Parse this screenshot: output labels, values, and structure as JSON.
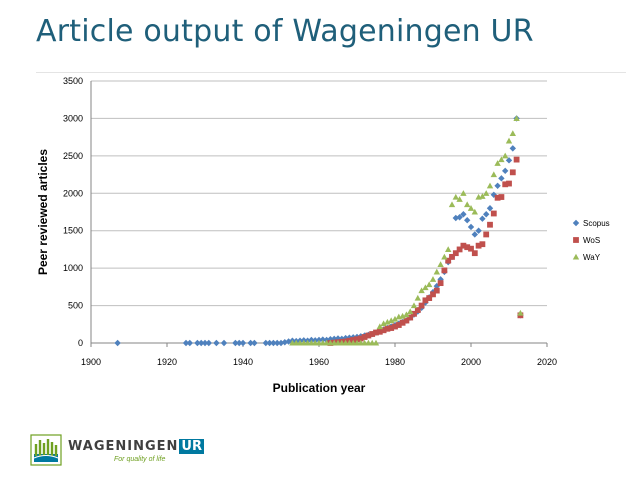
{
  "slide": {
    "title": "Article output of Wageningen UR"
  },
  "logo": {
    "name": "WAGENINGEN",
    "suffix": "UR",
    "tagline": "For quality of life"
  },
  "chart_data": {
    "type": "scatter",
    "title": "",
    "xlabel": "Publication year",
    "ylabel": "Peer reviewed articles",
    "xlim": [
      1900,
      2020
    ],
    "ylim": [
      0,
      3500
    ],
    "xticks": [
      1900,
      1920,
      1940,
      1960,
      1980,
      2000,
      2020
    ],
    "yticks": [
      0,
      500,
      1000,
      1500,
      2000,
      2500,
      3000,
      3500
    ],
    "grid": "horizontal",
    "legend_position": "right",
    "series": [
      {
        "name": "Scopus",
        "color": "#4f81bd",
        "marker": "diamond",
        "points": [
          [
            1907,
            0
          ],
          [
            1925,
            0
          ],
          [
            1926,
            0
          ],
          [
            1928,
            0
          ],
          [
            1929,
            0
          ],
          [
            1930,
            0
          ],
          [
            1931,
            0
          ],
          [
            1933,
            0
          ],
          [
            1935,
            0
          ],
          [
            1938,
            0
          ],
          [
            1939,
            0
          ],
          [
            1940,
            0
          ],
          [
            1942,
            0
          ],
          [
            1943,
            0
          ],
          [
            1946,
            0
          ],
          [
            1947,
            0
          ],
          [
            1948,
            0
          ],
          [
            1949,
            0
          ],
          [
            1950,
            0
          ],
          [
            1951,
            10
          ],
          [
            1952,
            20
          ],
          [
            1953,
            30
          ],
          [
            1954,
            25
          ],
          [
            1955,
            30
          ],
          [
            1956,
            35
          ],
          [
            1957,
            30
          ],
          [
            1958,
            40
          ],
          [
            1959,
            35
          ],
          [
            1960,
            40
          ],
          [
            1961,
            45
          ],
          [
            1962,
            40
          ],
          [
            1963,
            50
          ],
          [
            1964,
            55
          ],
          [
            1965,
            60
          ],
          [
            1966,
            55
          ],
          [
            1967,
            65
          ],
          [
            1968,
            70
          ],
          [
            1969,
            75
          ],
          [
            1970,
            80
          ],
          [
            1971,
            90
          ],
          [
            1972,
            100
          ],
          [
            1973,
            110
          ],
          [
            1974,
            120
          ],
          [
            1975,
            140
          ],
          [
            1976,
            160
          ],
          [
            1977,
            180
          ],
          [
            1978,
            200
          ],
          [
            1979,
            220
          ],
          [
            1980,
            240
          ],
          [
            1981,
            260
          ],
          [
            1982,
            280
          ],
          [
            1983,
            300
          ],
          [
            1984,
            340
          ],
          [
            1985,
            380
          ],
          [
            1986,
            420
          ],
          [
            1987,
            470
          ],
          [
            1988,
            540
          ],
          [
            1989,
            610
          ],
          [
            1990,
            680
          ],
          [
            1991,
            760
          ],
          [
            1992,
            850
          ],
          [
            1993,
            950
          ],
          [
            1994,
            1080
          ],
          [
            1995,
            1150
          ],
          [
            1996,
            1670
          ],
          [
            1997,
            1680
          ],
          [
            1998,
            1720
          ],
          [
            1999,
            1640
          ],
          [
            2000,
            1550
          ],
          [
            2001,
            1450
          ],
          [
            2002,
            1500
          ],
          [
            2003,
            1660
          ],
          [
            2004,
            1720
          ],
          [
            2005,
            1800
          ],
          [
            2006,
            1980
          ],
          [
            2007,
            2100
          ],
          [
            2008,
            2200
          ],
          [
            2009,
            2300
          ],
          [
            2010,
            2440
          ],
          [
            2011,
            2600
          ],
          [
            2012,
            3000
          ],
          [
            2013,
            370
          ]
        ]
      },
      {
        "name": "WoS",
        "color": "#c0504d",
        "marker": "square",
        "points": [
          [
            1963,
            0
          ],
          [
            1964,
            5
          ],
          [
            1965,
            10
          ],
          [
            1966,
            15
          ],
          [
            1967,
            20
          ],
          [
            1968,
            30
          ],
          [
            1969,
            40
          ],
          [
            1970,
            50
          ],
          [
            1971,
            60
          ],
          [
            1972,
            80
          ],
          [
            1973,
            100
          ],
          [
            1974,
            120
          ],
          [
            1975,
            140
          ],
          [
            1976,
            150
          ],
          [
            1977,
            170
          ],
          [
            1978,
            190
          ],
          [
            1979,
            200
          ],
          [
            1980,
            220
          ],
          [
            1981,
            240
          ],
          [
            1982,
            270
          ],
          [
            1983,
            300
          ],
          [
            1984,
            340
          ],
          [
            1985,
            390
          ],
          [
            1986,
            440
          ],
          [
            1987,
            500
          ],
          [
            1988,
            570
          ],
          [
            1989,
            600
          ],
          [
            1990,
            650
          ],
          [
            1991,
            700
          ],
          [
            1992,
            800
          ],
          [
            1993,
            970
          ],
          [
            1994,
            1100
          ],
          [
            1995,
            1150
          ],
          [
            1996,
            1200
          ],
          [
            1997,
            1250
          ],
          [
            1998,
            1300
          ],
          [
            1999,
            1280
          ],
          [
            2000,
            1260
          ],
          [
            2001,
            1200
          ],
          [
            2002,
            1300
          ],
          [
            2003,
            1320
          ],
          [
            2004,
            1450
          ],
          [
            2005,
            1580
          ],
          [
            2006,
            1730
          ],
          [
            2007,
            1940
          ],
          [
            2008,
            1950
          ],
          [
            2009,
            2120
          ],
          [
            2010,
            2130
          ],
          [
            2011,
            2280
          ],
          [
            2012,
            2450
          ],
          [
            2013,
            370
          ]
        ]
      },
      {
        "name": "WaY",
        "color": "#9bbb59",
        "marker": "triangle",
        "points": [
          [
            1953,
            0
          ],
          [
            1954,
            0
          ],
          [
            1955,
            0
          ],
          [
            1956,
            0
          ],
          [
            1957,
            0
          ],
          [
            1958,
            0
          ],
          [
            1959,
            0
          ],
          [
            1960,
            0
          ],
          [
            1961,
            0
          ],
          [
            1962,
            0
          ],
          [
            1963,
            0
          ],
          [
            1964,
            0
          ],
          [
            1965,
            0
          ],
          [
            1966,
            0
          ],
          [
            1967,
            0
          ],
          [
            1968,
            0
          ],
          [
            1969,
            0
          ],
          [
            1970,
            0
          ],
          [
            1971,
            0
          ],
          [
            1972,
            0
          ],
          [
            1973,
            0
          ],
          [
            1974,
            0
          ],
          [
            1975,
            0
          ],
          [
            1976,
            220
          ],
          [
            1977,
            260
          ],
          [
            1978,
            280
          ],
          [
            1979,
            300
          ],
          [
            1980,
            320
          ],
          [
            1981,
            350
          ],
          [
            1982,
            360
          ],
          [
            1983,
            380
          ],
          [
            1984,
            420
          ],
          [
            1985,
            500
          ],
          [
            1986,
            600
          ],
          [
            1987,
            700
          ],
          [
            1988,
            740
          ],
          [
            1989,
            780
          ],
          [
            1990,
            850
          ],
          [
            1991,
            950
          ],
          [
            1992,
            1050
          ],
          [
            1993,
            1150
          ],
          [
            1994,
            1250
          ],
          [
            1995,
            1850
          ],
          [
            1996,
            1950
          ],
          [
            1997,
            1920
          ],
          [
            1998,
            2000
          ],
          [
            1999,
            1850
          ],
          [
            2000,
            1800
          ],
          [
            2001,
            1750
          ],
          [
            2002,
            1950
          ],
          [
            2003,
            1960
          ],
          [
            2004,
            2000
          ],
          [
            2005,
            2100
          ],
          [
            2006,
            2250
          ],
          [
            2007,
            2400
          ],
          [
            2008,
            2450
          ],
          [
            2009,
            2500
          ],
          [
            2010,
            2700
          ],
          [
            2011,
            2800
          ],
          [
            2012,
            3000
          ],
          [
            2013,
            400
          ]
        ]
      }
    ]
  }
}
